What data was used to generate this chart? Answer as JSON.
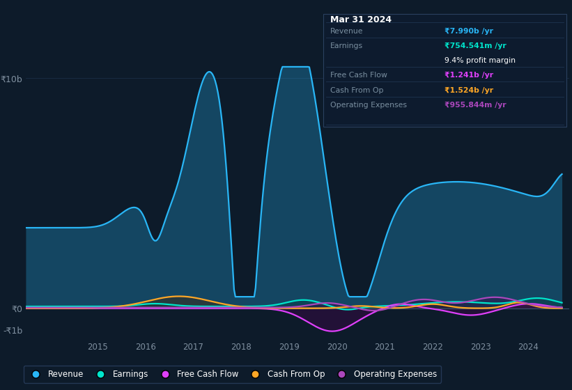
{
  "background_color": "#0d1b2a",
  "colors": {
    "revenue": "#29b6f6",
    "earnings": "#00e5cc",
    "fcf": "#e040fb",
    "cashop": "#ffa726",
    "opex": "#ab47bc"
  },
  "legend_labels": [
    "Revenue",
    "Earnings",
    "Free Cash Flow",
    "Cash From Op",
    "Operating Expenses"
  ],
  "legend_colors": [
    "#29b6f6",
    "#00e5cc",
    "#e040fb",
    "#ffa726",
    "#ab47bc"
  ],
  "info_box_bg": "#0d1b2e",
  "info_box_border": "#2a4060",
  "grid_color": "#1a2d45",
  "axis_label_color": "#7a8fa0",
  "tick_label_color": "#8090a0"
}
